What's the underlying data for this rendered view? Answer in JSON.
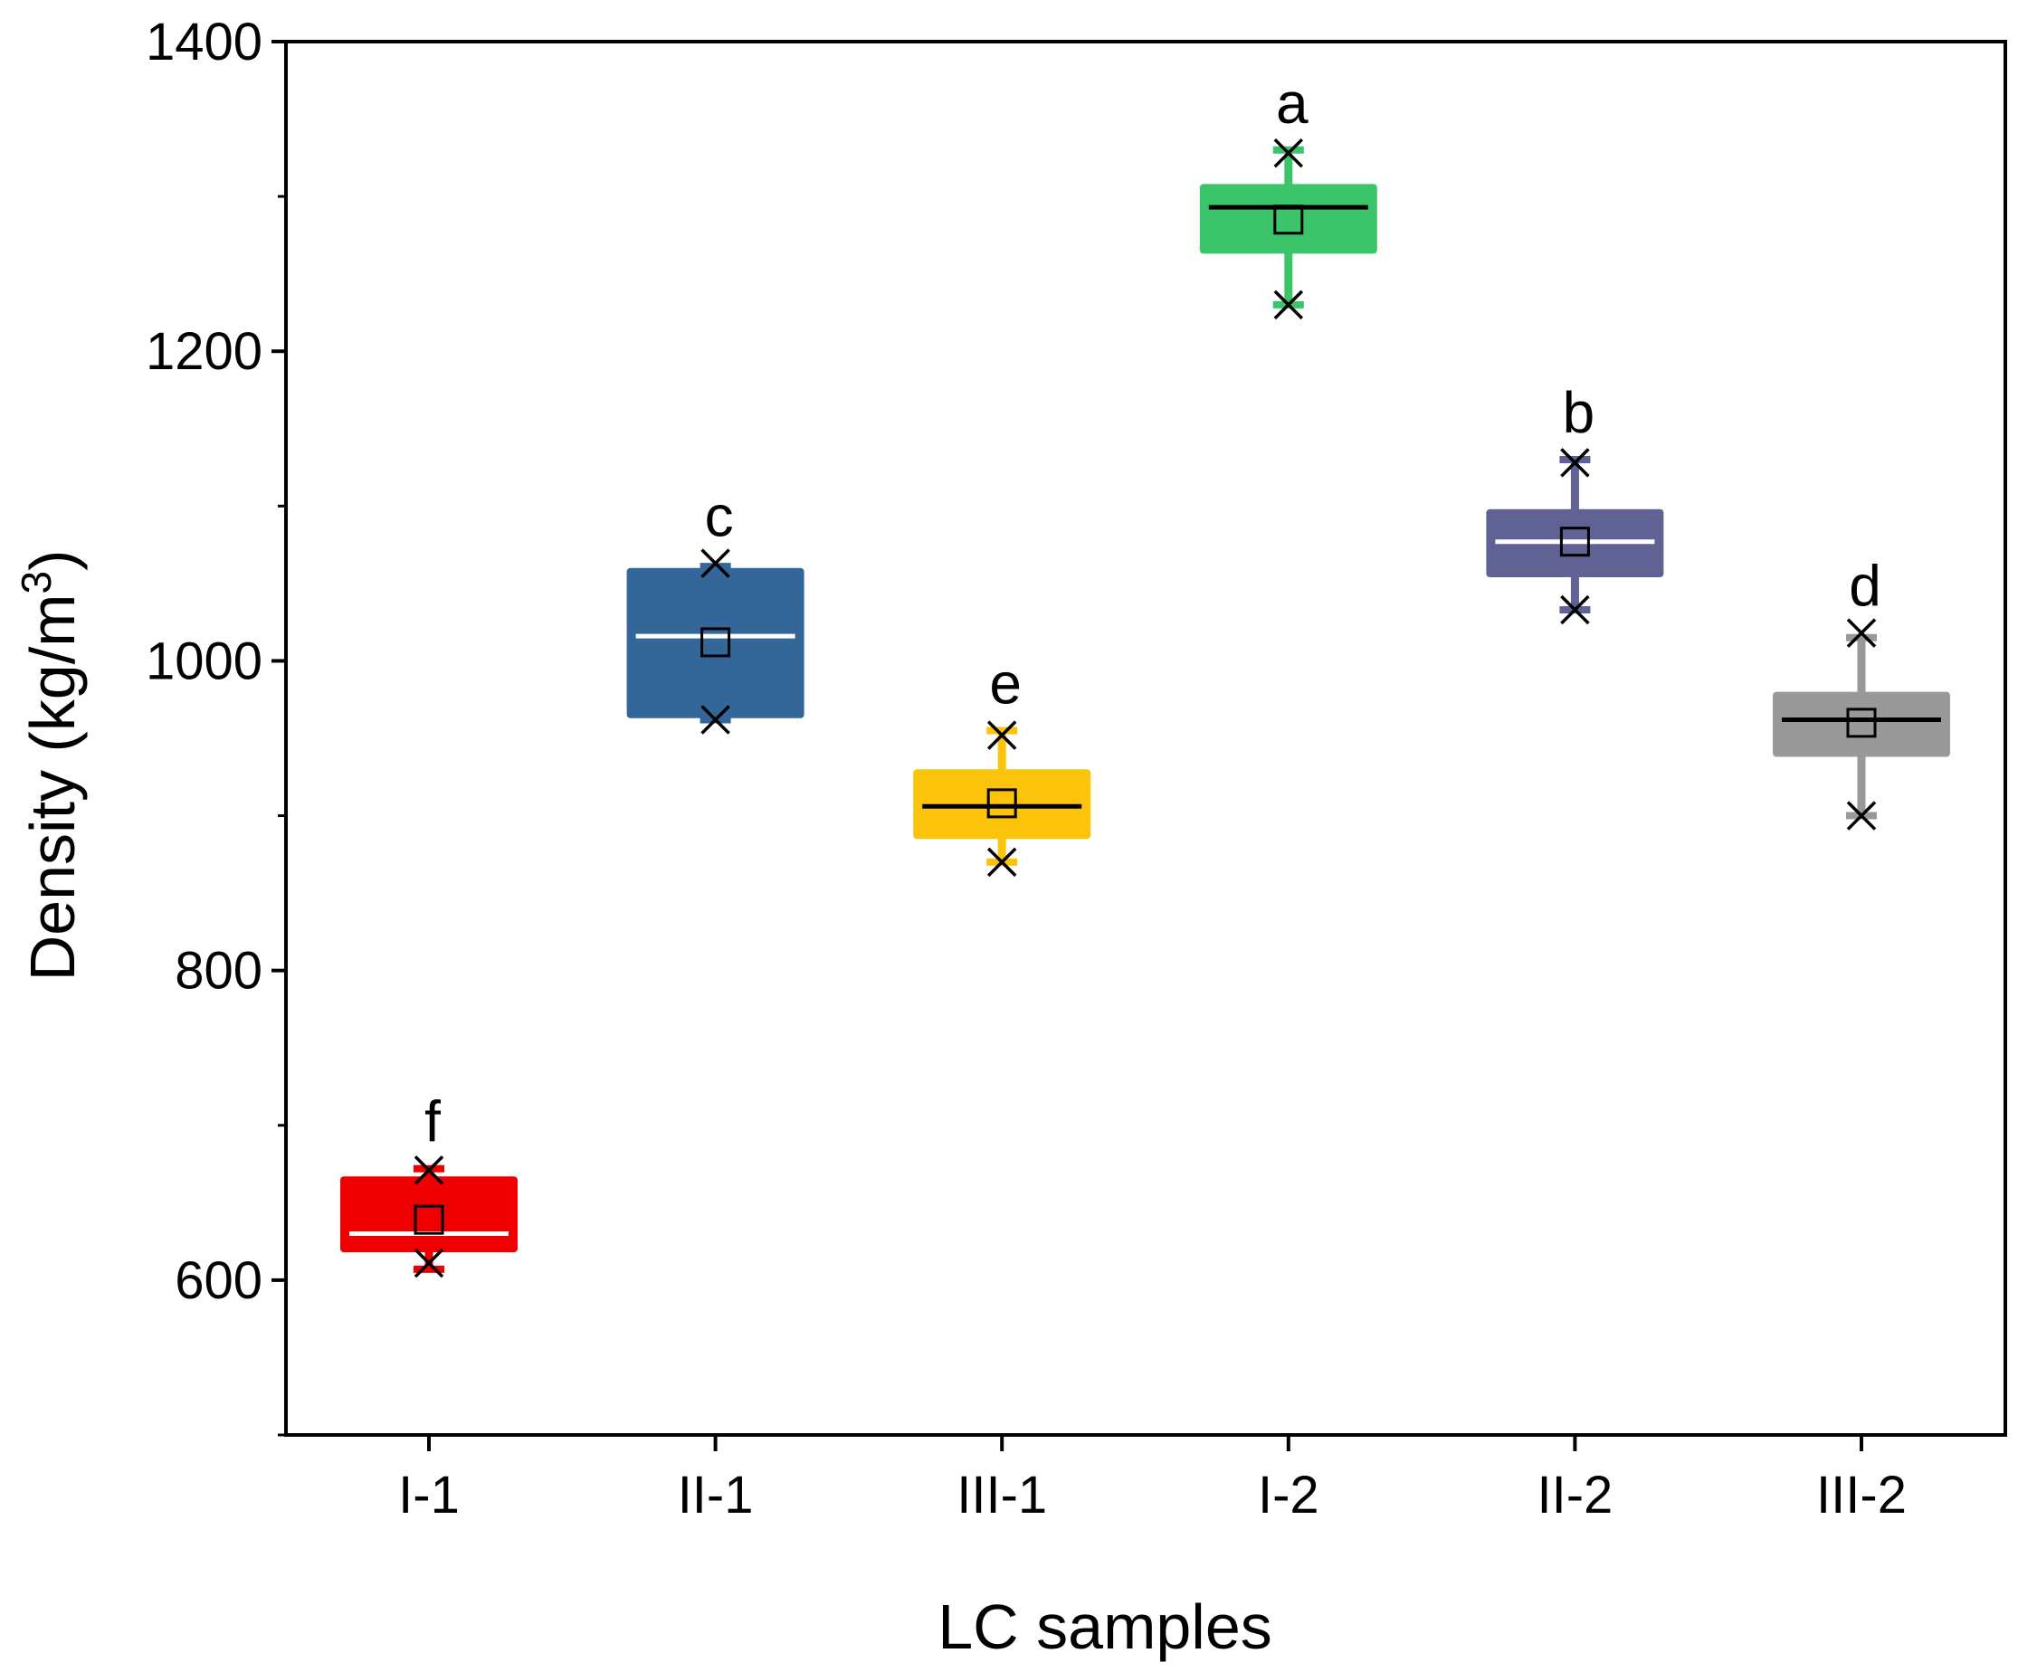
{
  "chart_data": {
    "type": "box",
    "xlabel": "LC samples",
    "ylabel": "Density (kg/m",
    "ylabel_sup": "3",
    "ylabel_close": ")",
    "ylim": [
      500,
      1400
    ],
    "yticks": [
      600,
      800,
      1000,
      1200,
      1400
    ],
    "grid": false,
    "categories": [
      "I-1",
      "II-1",
      "III-1",
      "I-2",
      "II-2",
      "III-2"
    ],
    "boxes": [
      {
        "category": "I-1",
        "color": "#ee0000",
        "median_color": "#ffffff",
        "min": 607,
        "q1": 618,
        "median": 630,
        "q3": 667,
        "max": 672,
        "mean": 639,
        "x_low": 611,
        "x_high": 671,
        "letter": "f"
      },
      {
        "category": "II-1",
        "color": "#336699",
        "median_color": "#ffffff",
        "min": 962,
        "q1": 963,
        "median": 1016,
        "q3": 1060,
        "max": 1061,
        "mean": 1012,
        "x_low": 962,
        "x_high": 1063,
        "letter": "c"
      },
      {
        "category": "III-1",
        "color": "#fcc30b",
        "median_color": "#000000",
        "min": 870,
        "q1": 885,
        "median": 906,
        "q3": 930,
        "max": 955,
        "mean": 908,
        "x_low": 870,
        "x_high": 952,
        "letter": "e"
      },
      {
        "category": "I-2",
        "color": "#3cc46b",
        "median_color": "#000000",
        "min": 1230,
        "q1": 1263,
        "median": 1293,
        "q3": 1308,
        "max": 1330,
        "mean": 1285,
        "x_low": 1230,
        "x_high": 1328,
        "letter": "a"
      },
      {
        "category": "II-2",
        "color": "#5f6293",
        "median_color": "#ffffff",
        "min": 1033,
        "q1": 1054,
        "median": 1077,
        "q3": 1098,
        "max": 1130,
        "mean": 1077,
        "x_low": 1033,
        "x_high": 1128,
        "letter": "b"
      },
      {
        "category": "III-2",
        "color": "#999999",
        "median_color": "#000000",
        "min": 900,
        "q1": 938,
        "median": 962,
        "q3": 980,
        "max": 1015,
        "mean": 960,
        "x_low": 900,
        "x_high": 1018,
        "letter": "d"
      }
    ]
  }
}
